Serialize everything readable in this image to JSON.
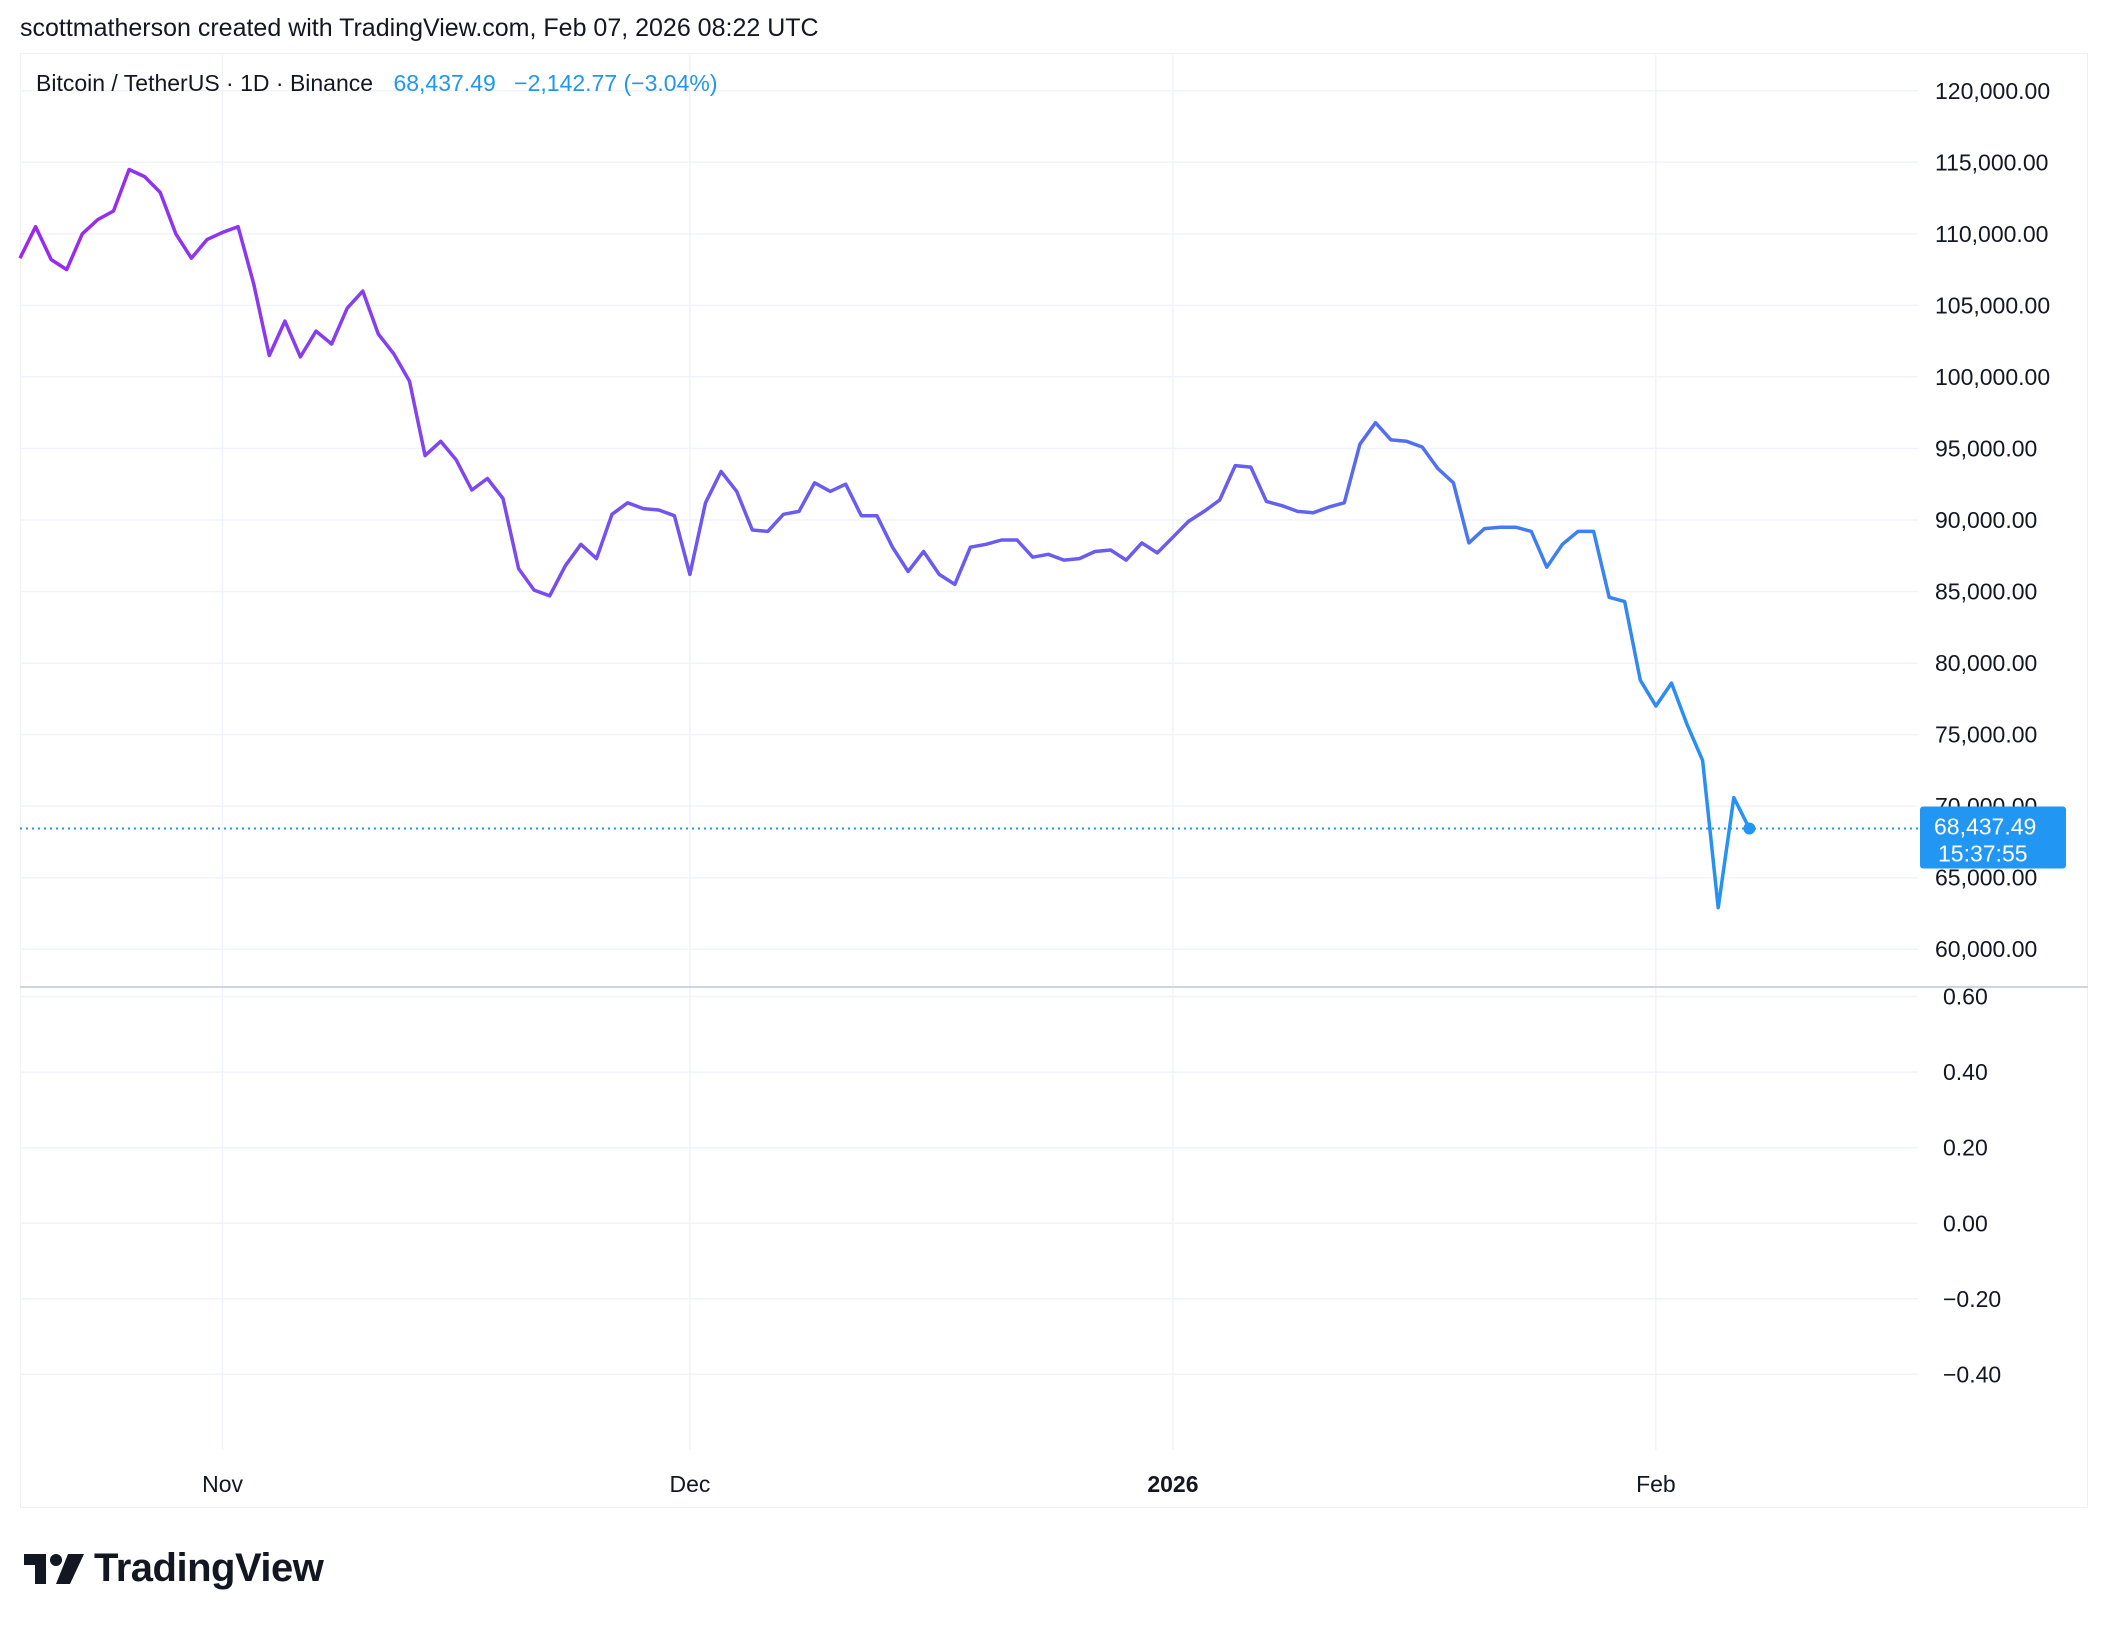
{
  "header": {
    "attribution": "scottmatherson created with TradingView.com, Feb 07, 2026 08:22 UTC"
  },
  "legend": {
    "symbol": "Bitcoin / TetherUS · 1D · Binance",
    "price": "68,437.49",
    "change": "−2,142.77 (−3.04%)"
  },
  "last_tag": {
    "price": "68,437.49",
    "countdown": "15:37:55"
  },
  "brand": {
    "name": "TradingView",
    "logo_icon": "tradingview-logo-icon"
  },
  "colors": {
    "line_start": "#9c27f0",
    "line_mid": "#6a5cf0",
    "line_end": "#2196f3",
    "tag_bg": "#2196f3",
    "grid": "#f0f3fa"
  },
  "chart_data": [
    {
      "type": "line",
      "title": "",
      "xlabel": "",
      "ylabel": "",
      "ylim": [
        57500,
        122500
      ],
      "grid": true,
      "x_ticks": [
        {
          "label": "Nov",
          "date": "2025-11-01",
          "bold": false
        },
        {
          "label": "Dec",
          "date": "2025-12-01",
          "bold": false
        },
        {
          "label": "2026",
          "date": "2026-01-01",
          "bold": true
        },
        {
          "label": "Feb",
          "date": "2026-02-01",
          "bold": false
        }
      ],
      "y_ticks": [
        {
          "value": 60000,
          "label": "60,000.00"
        },
        {
          "value": 65000,
          "label": "65,000.00"
        },
        {
          "value": 70000,
          "label": "70,000.00"
        },
        {
          "value": 75000,
          "label": "75,000.00"
        },
        {
          "value": 80000,
          "label": "80,000.00"
        },
        {
          "value": 85000,
          "label": "85,000.00"
        },
        {
          "value": 90000,
          "label": "90,000.00"
        },
        {
          "value": 95000,
          "label": "95,000.00"
        },
        {
          "value": 100000,
          "label": "100,000.00"
        },
        {
          "value": 105000,
          "label": "105,000.00"
        },
        {
          "value": 110000,
          "label": "110,000.00"
        },
        {
          "value": 115000,
          "label": "115,000.00"
        },
        {
          "value": 120000,
          "label": "120,000.00"
        }
      ],
      "last_value": 68437.49,
      "x": [
        "2025-10-19",
        "2025-10-20",
        "2025-10-21",
        "2025-10-22",
        "2025-10-23",
        "2025-10-24",
        "2025-10-25",
        "2025-10-26",
        "2025-10-27",
        "2025-10-28",
        "2025-10-29",
        "2025-10-30",
        "2025-10-31",
        "2025-11-01",
        "2025-11-02",
        "2025-11-03",
        "2025-11-04",
        "2025-11-05",
        "2025-11-06",
        "2025-11-07",
        "2025-11-08",
        "2025-11-09",
        "2025-11-10",
        "2025-11-11",
        "2025-11-12",
        "2025-11-13",
        "2025-11-14",
        "2025-11-15",
        "2025-11-16",
        "2025-11-17",
        "2025-11-18",
        "2025-11-19",
        "2025-11-20",
        "2025-11-21",
        "2025-11-22",
        "2025-11-23",
        "2025-11-24",
        "2025-11-25",
        "2025-11-26",
        "2025-11-27",
        "2025-11-28",
        "2025-11-29",
        "2025-11-30",
        "2025-12-01",
        "2025-12-02",
        "2025-12-03",
        "2025-12-04",
        "2025-12-05",
        "2025-12-06",
        "2025-12-07",
        "2025-12-08",
        "2025-12-09",
        "2025-12-10",
        "2025-12-11",
        "2025-12-12",
        "2025-12-13",
        "2025-12-14",
        "2025-12-15",
        "2025-12-16",
        "2025-12-17",
        "2025-12-18",
        "2025-12-19",
        "2025-12-20",
        "2025-12-21",
        "2025-12-22",
        "2025-12-23",
        "2025-12-24",
        "2025-12-25",
        "2025-12-26",
        "2025-12-27",
        "2025-12-28",
        "2025-12-29",
        "2025-12-30",
        "2025-12-31",
        "2026-01-01",
        "2026-01-02",
        "2026-01-03",
        "2026-01-04",
        "2026-01-05",
        "2026-01-06",
        "2026-01-07",
        "2026-01-08",
        "2026-01-09",
        "2026-01-10",
        "2026-01-11",
        "2026-01-12",
        "2026-01-13",
        "2026-01-14",
        "2026-01-15",
        "2026-01-16",
        "2026-01-17",
        "2026-01-18",
        "2026-01-19",
        "2026-01-20",
        "2026-01-21",
        "2026-01-22",
        "2026-01-23",
        "2026-01-24",
        "2026-01-25",
        "2026-01-26",
        "2026-01-27",
        "2026-01-28",
        "2026-01-29",
        "2026-01-30",
        "2026-01-31",
        "2026-02-01",
        "2026-02-02",
        "2026-02-03",
        "2026-02-04",
        "2026-02-05",
        "2026-02-06",
        "2026-02-07"
      ],
      "series": [
        {
          "values": [
            108300,
            110500,
            108200,
            107500,
            110000,
            111000,
            111600,
            114500,
            114000,
            112900,
            110000,
            108300,
            109600,
            110100,
            110500,
            106500,
            101500,
            103900,
            101400,
            103200,
            102300,
            104800,
            106000,
            103000,
            101600,
            99700,
            94500,
            95500,
            94200,
            92100,
            92900,
            91500,
            86600,
            85100,
            84700,
            86800,
            88300,
            87300,
            90400,
            91200,
            90800,
            90700,
            90300,
            86200,
            91200,
            93400,
            92000,
            89300,
            89200,
            90400,
            90600,
            92600,
            92000,
            92500,
            90300,
            90300,
            88100,
            86400,
            87800,
            86200,
            85500,
            88100,
            88300,
            88600,
            88600,
            87400,
            87600,
            87200,
            87300,
            87800,
            87900,
            87200,
            88400,
            87700,
            88800,
            89900,
            90600,
            91400,
            93800,
            93700,
            91300,
            91000,
            90600,
            90500,
            90900,
            91200,
            95300,
            96800,
            95600,
            95500,
            95100,
            93600,
            92600,
            88400,
            89400,
            89500,
            89500,
            89200,
            86700,
            88300,
            89200,
            89200,
            84600,
            84300,
            78800,
            77000,
            78600,
            75700,
            73200,
            62900,
            70600,
            68437.49
          ]
        }
      ]
    },
    {
      "type": "line",
      "title": "",
      "ylim": [
        -0.6,
        0.62
      ],
      "grid": true,
      "y_ticks": [
        {
          "value": 0.6,
          "label": "0.60"
        },
        {
          "value": 0.4,
          "label": "0.40"
        },
        {
          "value": 0.2,
          "label": "0.20"
        },
        {
          "value": 0.0,
          "label": "0.00"
        },
        {
          "value": -0.2,
          "label": "−0.20"
        },
        {
          "value": -0.4,
          "label": "−0.40"
        }
      ],
      "series": []
    }
  ]
}
